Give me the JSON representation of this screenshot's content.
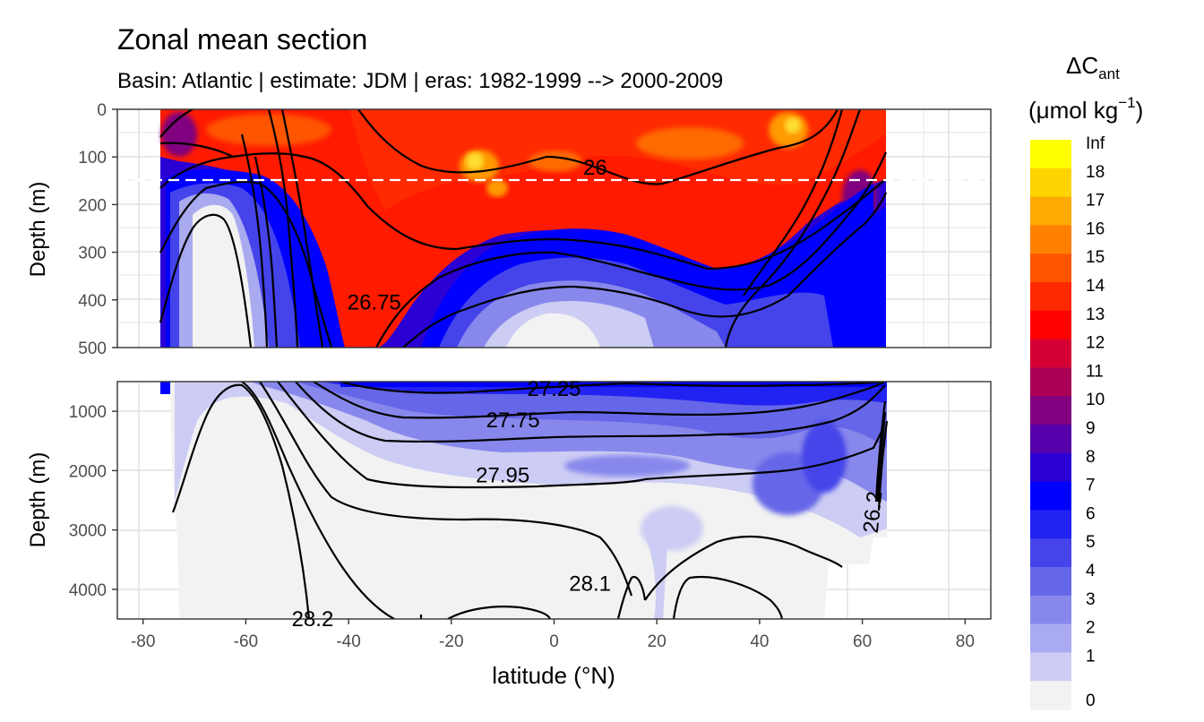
{
  "title": "Zonal mean section",
  "subtitle": "Basin: Atlantic | estimate: JDM  | eras: 1982-1999 --> 2000-2009",
  "legend": {
    "title_main": "ΔC",
    "title_sub": "ant",
    "unit_open": "(μmol kg",
    "unit_exp": "−1",
    "unit_close": ")",
    "labels": [
      "Inf",
      "18",
      "17",
      "16",
      "15",
      "14",
      "13",
      "12",
      "11",
      "10",
      "9",
      "8",
      "7",
      "6",
      "5",
      "4",
      "3",
      "2",
      "1",
      "0"
    ],
    "colors": [
      "#ffff00",
      "#ffd400",
      "#ffaa00",
      "#ff8000",
      "#ff5500",
      "#ff2a00",
      "#ff0000",
      "#d40033",
      "#aa0055",
      "#800080",
      "#5500aa",
      "#2a00d4",
      "#0000ff",
      "#2222f3",
      "#4444ea",
      "#6666e8",
      "#8888ec",
      "#aaaaf0",
      "#ccccf4",
      "#f2f2f2"
    ]
  },
  "chart_data": {
    "type": "heatmap",
    "title": "Zonal mean section",
    "subtitle": "Basin: Atlantic | estimate: JDM  | eras: 1982-1999 --> 2000-2009",
    "xlabel": "latitude (°N)",
    "ylabel": "Depth (m)",
    "xlim": [
      -85,
      85
    ],
    "x_ticks": [
      "-80",
      "-60",
      "-40",
      "-20",
      "0",
      "20",
      "40",
      "60",
      "80"
    ],
    "panels": [
      {
        "name": "upper",
        "ylim": [
          500,
          0
        ],
        "y_ticks": [
          "0",
          "100",
          "200",
          "300",
          "400",
          "500"
        ]
      },
      {
        "name": "lower",
        "ylim": [
          4500,
          500
        ],
        "y_ticks": [
          "1000",
          "2000",
          "3000",
          "4000"
        ]
      }
    ],
    "reference_depth_m": 150,
    "density_contour_labels": [
      {
        "text": "26",
        "lat": 8,
        "depth": 122
      },
      {
        "text": "26.75",
        "lat": -35,
        "depth": 405
      },
      {
        "text": "27.25",
        "lat": 0,
        "depth": 620
      },
      {
        "text": "27.75",
        "lat": -8,
        "depth": 1150
      },
      {
        "text": "27.95",
        "lat": -10,
        "depth": 2080
      },
      {
        "text": "28.1",
        "lat": 7,
        "depth": 3900
      },
      {
        "text": "28.2",
        "lat": -47,
        "depth": 4500
      },
      {
        "text": "26.2",
        "lat": 62,
        "depth": 2700
      }
    ],
    "colorbar_breaks": [
      "0",
      "1",
      "2",
      "3",
      "4",
      "5",
      "6",
      "7",
      "8",
      "9",
      "10",
      "11",
      "12",
      "13",
      "14",
      "15",
      "16",
      "17",
      "18",
      "Inf"
    ],
    "grid": true
  }
}
